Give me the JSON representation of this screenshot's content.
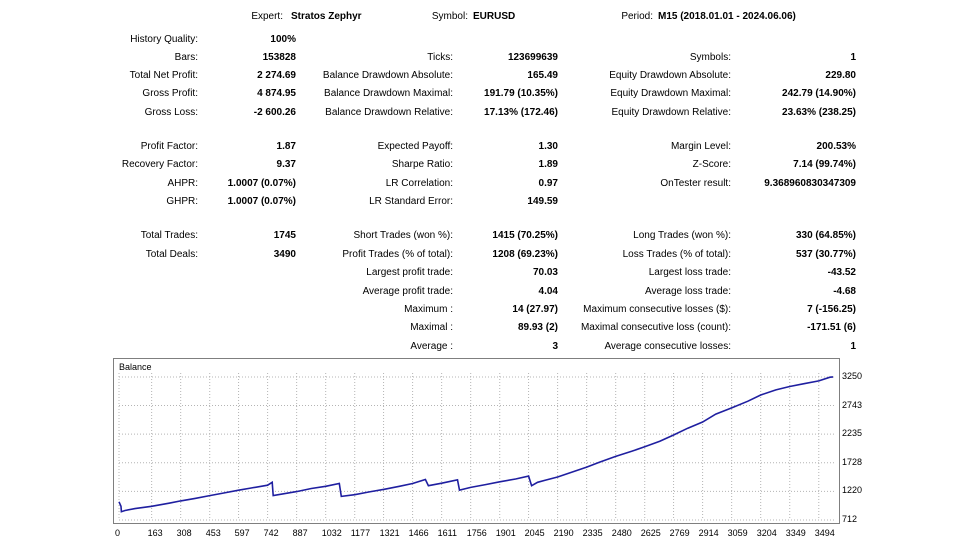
{
  "header": {
    "expert_label": "Expert:",
    "expert_value": "Stratos Zephyr",
    "symbol_label": "Symbol:",
    "symbol_value": "EURUSD",
    "period_label": "Period:",
    "period_value": "M15 (2018.01.01 - 2024.06.06)"
  },
  "rows": [
    {
      "c1": [
        "History Quality:",
        "100%"
      ],
      "c2": [
        "",
        ""
      ],
      "c3": [
        "",
        ""
      ]
    },
    {
      "c1": [
        "Bars:",
        "153828"
      ],
      "c2": [
        "Ticks:",
        "123699639"
      ],
      "c3": [
        "Symbols:",
        "1"
      ]
    },
    {
      "c1": [
        "Total Net Profit:",
        "2 274.69"
      ],
      "c2": [
        "Balance Drawdown Absolute:",
        "165.49"
      ],
      "c3": [
        "Equity Drawdown Absolute:",
        "229.80"
      ]
    },
    {
      "c1": [
        "Gross Profit:",
        "4 874.95"
      ],
      "c2": [
        "Balance Drawdown Maximal:",
        "191.79 (10.35%)"
      ],
      "c3": [
        "Equity Drawdown Maximal:",
        "242.79 (14.90%)"
      ]
    },
    {
      "c1": [
        "Gross Loss:",
        "-2 600.26"
      ],
      "c2": [
        "Balance Drawdown Relative:",
        "17.13% (172.46)"
      ],
      "c3": [
        "Equity Drawdown Relative:",
        "23.63% (238.25)"
      ]
    },
    {
      "c1": [
        "Profit Factor:",
        "1.87"
      ],
      "c2": [
        "Expected Payoff:",
        "1.30"
      ],
      "c3": [
        "Margin Level:",
        "200.53%"
      ]
    },
    {
      "c1": [
        "Recovery Factor:",
        "9.37"
      ],
      "c2": [
        "Sharpe Ratio:",
        "1.89"
      ],
      "c3": [
        "Z-Score:",
        "7.14 (99.74%)"
      ]
    },
    {
      "c1": [
        "AHPR:",
        "1.0007 (0.07%)"
      ],
      "c2": [
        "LR Correlation:",
        "0.97"
      ],
      "c3": [
        "OnTester result:",
        "9.368960830347309"
      ]
    },
    {
      "c1": [
        "GHPR:",
        "1.0007 (0.07%)"
      ],
      "c2": [
        "LR Standard Error:",
        "149.59"
      ],
      "c3": [
        "",
        ""
      ]
    },
    {
      "c1": [
        "Total Trades:",
        "1745"
      ],
      "c2": [
        "Short Trades (won %):",
        "1415 (70.25%)"
      ],
      "c3": [
        "Long Trades (won %):",
        "330 (64.85%)"
      ]
    },
    {
      "c1": [
        "Total Deals:",
        "3490"
      ],
      "c2": [
        "Profit Trades (% of total):",
        "1208 (69.23%)"
      ],
      "c3": [
        "Loss Trades (% of total):",
        "537 (30.77%)"
      ]
    },
    {
      "c1": [
        "",
        ""
      ],
      "c2": [
        "Largest profit trade:",
        "70.03"
      ],
      "c3": [
        "Largest loss trade:",
        "-43.52"
      ]
    },
    {
      "c1": [
        "",
        ""
      ],
      "c2": [
        "Average profit trade:",
        "4.04"
      ],
      "c3": [
        "Average loss trade:",
        "-4.68"
      ]
    },
    {
      "c1": [
        "",
        ""
      ],
      "c2": [
        "Maximum :",
        "14 (27.97)"
      ],
      "c3": [
        "Maximum consecutive losses ($):",
        "7 (-156.25)"
      ]
    },
    {
      "c1": [
        "",
        ""
      ],
      "c2": [
        "Maximal :",
        "89.93 (2)"
      ],
      "c3": [
        "Maximal consecutive loss (count):",
        "-171.51 (6)"
      ]
    },
    {
      "c1": [
        "",
        ""
      ],
      "c2": [
        "Average :",
        "3"
      ],
      "c3": [
        "Average consecutive losses:",
        "1"
      ]
    }
  ],
  "chart_data": {
    "type": "line",
    "title": "Balance",
    "x_ticks": [
      "0",
      "163",
      "308",
      "453",
      "597",
      "742",
      "887",
      "1032",
      "1177",
      "1321",
      "1466",
      "1611",
      "1756",
      "1901",
      "2045",
      "2190",
      "2335",
      "2480",
      "2625",
      "2769",
      "2914",
      "3059",
      "3204",
      "3349",
      "3494"
    ],
    "y_ticks": [
      "3250",
      "2743",
      "2235",
      "1728",
      "1220",
      "712"
    ],
    "xlim": [
      0,
      3570
    ],
    "ylim": [
      712,
      3320
    ],
    "grid": true,
    "colors": {
      "line": "#1f1fa0",
      "grid": "#b4b4b4"
    },
    "series": [
      {
        "x": [
          0,
          10,
          12,
          30,
          80,
          163,
          250,
          308,
          380,
          453,
          520,
          597,
          660,
          742,
          765,
          770,
          887,
          960,
          1032,
          1100,
          1110,
          1177,
          1250,
          1321,
          1400,
          1466,
          1530,
          1545,
          1611,
          1690,
          1700,
          1756,
          1830,
          1901,
          1980,
          2045,
          2060,
          2090,
          2130,
          2190,
          2260,
          2335,
          2400,
          2480,
          2560,
          2625,
          2700,
          2769,
          2840,
          2914,
          2980,
          3059,
          3140,
          3204,
          3280,
          3349,
          3420,
          3494,
          3550,
          3565
        ],
        "y": [
          1035,
          955,
          860,
          880,
          915,
          955,
          1010,
          1050,
          1095,
          1145,
          1190,
          1240,
          1280,
          1330,
          1380,
          1145,
          1215,
          1270,
          1310,
          1360,
          1130,
          1160,
          1210,
          1255,
          1310,
          1360,
          1430,
          1320,
          1365,
          1425,
          1240,
          1290,
          1340,
          1390,
          1440,
          1490,
          1320,
          1380,
          1420,
          1475,
          1560,
          1650,
          1740,
          1840,
          1930,
          2010,
          2110,
          2220,
          2340,
          2450,
          2590,
          2700,
          2820,
          2930,
          3020,
          3080,
          3130,
          3180,
          3245,
          3250
        ]
      }
    ]
  }
}
